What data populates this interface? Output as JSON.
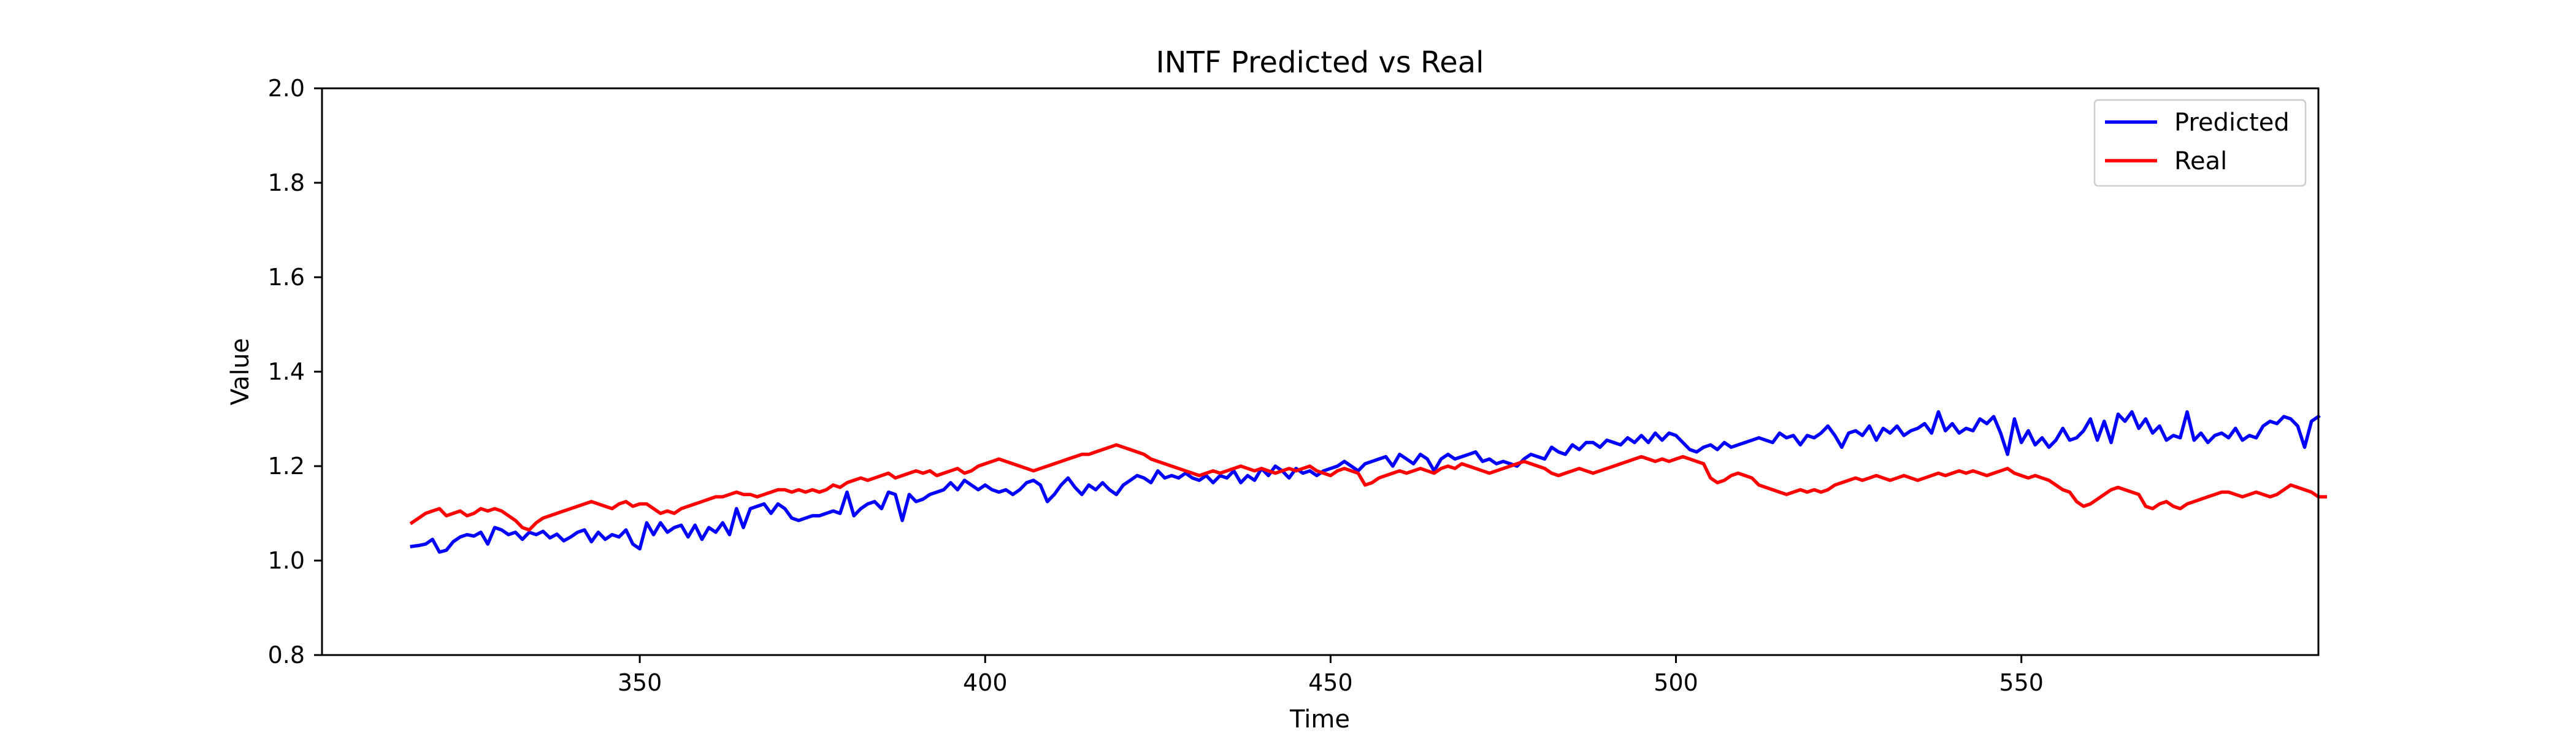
{
  "chart_data": {
    "type": "line",
    "title": "INTF Predicted vs Real",
    "xlabel": "Time",
    "ylabel": "Value",
    "xlim": [
      304,
      593
    ],
    "ylim": [
      0.8,
      2.0
    ],
    "xticks": [
      350,
      400,
      450,
      500,
      550
    ],
    "yticks": [
      0.8,
      1.0,
      1.2,
      1.4,
      1.6,
      1.8,
      2.0
    ],
    "xtick_labels": [
      "350",
      "400",
      "450",
      "500",
      "550"
    ],
    "ytick_labels": [
      "0.8",
      "1.0",
      "1.2",
      "1.4",
      "1.6",
      "1.8",
      "2.0"
    ],
    "grid": false,
    "legend_position": "top-right",
    "series": [
      {
        "name": "Predicted",
        "color": "#0000ff",
        "x_start": 317,
        "x_step": 1,
        "values": [
          1.03,
          1.032,
          1.035,
          1.045,
          1.018,
          1.022,
          1.04,
          1.05,
          1.055,
          1.052,
          1.06,
          1.035,
          1.07,
          1.065,
          1.055,
          1.06,
          1.045,
          1.06,
          1.055,
          1.062,
          1.048,
          1.056,
          1.042,
          1.05,
          1.06,
          1.065,
          1.04,
          1.06,
          1.045,
          1.055,
          1.05,
          1.065,
          1.035,
          1.025,
          1.08,
          1.055,
          1.08,
          1.06,
          1.07,
          1.075,
          1.05,
          1.075,
          1.045,
          1.07,
          1.06,
          1.08,
          1.055,
          1.11,
          1.07,
          1.11,
          1.115,
          1.12,
          1.1,
          1.12,
          1.11,
          1.09,
          1.085,
          1.09,
          1.095,
          1.095,
          1.1,
          1.105,
          1.1,
          1.145,
          1.095,
          1.11,
          1.12,
          1.125,
          1.11,
          1.145,
          1.14,
          1.085,
          1.14,
          1.125,
          1.13,
          1.14,
          1.145,
          1.15,
          1.165,
          1.15,
          1.17,
          1.16,
          1.15,
          1.16,
          1.15,
          1.145,
          1.15,
          1.14,
          1.15,
          1.165,
          1.17,
          1.16,
          1.125,
          1.14,
          1.16,
          1.175,
          1.155,
          1.14,
          1.16,
          1.15,
          1.165,
          1.15,
          1.14,
          1.16,
          1.17,
          1.18,
          1.175,
          1.165,
          1.19,
          1.175,
          1.18,
          1.175,
          1.185,
          1.175,
          1.17,
          1.18,
          1.165,
          1.18,
          1.175,
          1.19,
          1.165,
          1.18,
          1.17,
          1.195,
          1.18,
          1.2,
          1.19,
          1.175,
          1.195,
          1.185,
          1.19,
          1.18,
          1.19,
          1.195,
          1.2,
          1.21,
          1.2,
          1.19,
          1.205,
          1.21,
          1.215,
          1.22,
          1.2,
          1.225,
          1.215,
          1.205,
          1.225,
          1.215,
          1.19,
          1.215,
          1.225,
          1.215,
          1.22,
          1.225,
          1.23,
          1.21,
          1.215,
          1.205,
          1.21,
          1.205,
          1.2,
          1.215,
          1.225,
          1.22,
          1.215,
          1.24,
          1.23,
          1.225,
          1.245,
          1.235,
          1.25,
          1.25,
          1.24,
          1.255,
          1.25,
          1.245,
          1.26,
          1.25,
          1.265,
          1.25,
          1.27,
          1.255,
          1.27,
          1.265,
          1.25,
          1.235,
          1.23,
          1.24,
          1.245,
          1.235,
          1.25,
          1.24,
          1.245,
          1.25,
          1.255,
          1.26,
          1.255,
          1.25,
          1.27,
          1.26,
          1.265,
          1.245,
          1.265,
          1.26,
          1.27,
          1.285,
          1.265,
          1.24,
          1.27,
          1.275,
          1.265,
          1.285,
          1.255,
          1.28,
          1.27,
          1.285,
          1.265,
          1.275,
          1.28,
          1.29,
          1.27,
          1.315,
          1.275,
          1.29,
          1.27,
          1.28,
          1.275,
          1.3,
          1.29,
          1.305,
          1.27,
          1.225,
          1.3,
          1.25,
          1.275,
          1.245,
          1.26,
          1.24,
          1.255,
          1.28,
          1.255,
          1.26,
          1.275,
          1.3,
          1.255,
          1.295,
          1.25,
          1.31,
          1.295,
          1.315,
          1.28,
          1.3,
          1.27,
          1.285,
          1.255,
          1.265,
          1.26,
          1.315,
          1.255,
          1.27,
          1.25,
          1.265,
          1.27,
          1.26,
          1.28,
          1.255,
          1.265,
          1.26,
          1.285,
          1.295,
          1.29,
          1.305,
          1.3,
          1.285,
          1.24,
          1.295,
          1.305
        ]
      },
      {
        "name": "Real",
        "color": "#ff0000",
        "x_start": 317,
        "x_step": 1,
        "values": [
          1.08,
          1.09,
          1.1,
          1.105,
          1.11,
          1.095,
          1.1,
          1.105,
          1.095,
          1.1,
          1.11,
          1.105,
          1.11,
          1.105,
          1.095,
          1.085,
          1.07,
          1.065,
          1.08,
          1.09,
          1.095,
          1.1,
          1.105,
          1.11,
          1.115,
          1.12,
          1.125,
          1.12,
          1.115,
          1.11,
          1.12,
          1.125,
          1.115,
          1.12,
          1.12,
          1.11,
          1.1,
          1.105,
          1.1,
          1.11,
          1.115,
          1.12,
          1.125,
          1.13,
          1.135,
          1.135,
          1.14,
          1.145,
          1.14,
          1.14,
          1.135,
          1.14,
          1.145,
          1.15,
          1.15,
          1.145,
          1.15,
          1.145,
          1.15,
          1.145,
          1.15,
          1.16,
          1.155,
          1.165,
          1.17,
          1.175,
          1.17,
          1.175,
          1.18,
          1.185,
          1.175,
          1.18,
          1.185,
          1.19,
          1.185,
          1.19,
          1.18,
          1.185,
          1.19,
          1.195,
          1.185,
          1.19,
          1.2,
          1.205,
          1.21,
          1.215,
          1.21,
          1.205,
          1.2,
          1.195,
          1.19,
          1.195,
          1.2,
          1.205,
          1.21,
          1.215,
          1.22,
          1.225,
          1.225,
          1.23,
          1.235,
          1.24,
          1.245,
          1.24,
          1.235,
          1.23,
          1.225,
          1.215,
          1.21,
          1.205,
          1.2,
          1.195,
          1.19,
          1.185,
          1.18,
          1.185,
          1.19,
          1.185,
          1.19,
          1.195,
          1.2,
          1.195,
          1.19,
          1.195,
          1.19,
          1.185,
          1.19,
          1.195,
          1.19,
          1.195,
          1.2,
          1.19,
          1.185,
          1.18,
          1.19,
          1.195,
          1.19,
          1.185,
          1.16,
          1.165,
          1.175,
          1.18,
          1.185,
          1.19,
          1.185,
          1.19,
          1.195,
          1.19,
          1.185,
          1.195,
          1.2,
          1.195,
          1.205,
          1.2,
          1.195,
          1.19,
          1.185,
          1.19,
          1.195,
          1.2,
          1.205,
          1.21,
          1.205,
          1.2,
          1.195,
          1.185,
          1.18,
          1.185,
          1.19,
          1.195,
          1.19,
          1.185,
          1.19,
          1.195,
          1.2,
          1.205,
          1.21,
          1.215,
          1.22,
          1.215,
          1.21,
          1.215,
          1.21,
          1.215,
          1.22,
          1.215,
          1.21,
          1.205,
          1.175,
          1.165,
          1.17,
          1.18,
          1.185,
          1.18,
          1.175,
          1.16,
          1.155,
          1.15,
          1.145,
          1.14,
          1.145,
          1.15,
          1.145,
          1.15,
          1.145,
          1.15,
          1.16,
          1.165,
          1.17,
          1.175,
          1.17,
          1.175,
          1.18,
          1.175,
          1.17,
          1.175,
          1.18,
          1.175,
          1.17,
          1.175,
          1.18,
          1.185,
          1.18,
          1.185,
          1.19,
          1.185,
          1.19,
          1.185,
          1.18,
          1.185,
          1.19,
          1.195,
          1.185,
          1.18,
          1.175,
          1.18,
          1.175,
          1.17,
          1.16,
          1.15,
          1.145,
          1.125,
          1.115,
          1.12,
          1.13,
          1.14,
          1.15,
          1.155,
          1.15,
          1.145,
          1.14,
          1.115,
          1.11,
          1.12,
          1.125,
          1.115,
          1.11,
          1.12,
          1.125,
          1.13,
          1.135,
          1.14,
          1.145,
          1.145,
          1.14,
          1.135,
          1.14,
          1.145,
          1.14,
          1.135,
          1.14,
          1.15,
          1.16,
          1.155,
          1.15,
          1.145,
          1.135,
          1.135
        ]
      }
    ]
  }
}
